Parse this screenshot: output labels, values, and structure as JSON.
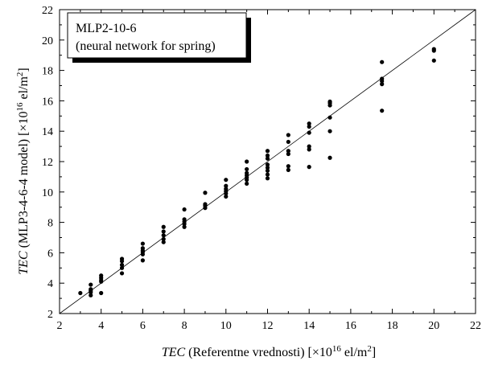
{
  "chart_data": {
    "type": "scatter",
    "title": "",
    "annotation": {
      "line1": "MLP2-10-6",
      "line2": "(neural network for spring)"
    },
    "xlabel": {
      "italic": "TEC",
      "text": " (Referentne vrednosti) [×10",
      "exp": "16",
      "unit": " el/m",
      "unit_exp": "2",
      "close": "]"
    },
    "ylabel": {
      "italic": "TEC",
      "text": " (MLP3-4-6-4 model) [×10",
      "exp": "16",
      "unit": " el/m",
      "unit_exp": "2",
      "close": "]"
    },
    "xlim": [
      2,
      22
    ],
    "ylim": [
      2,
      22
    ],
    "xticks": [
      2,
      4,
      6,
      8,
      10,
      12,
      14,
      16,
      18,
      20,
      22
    ],
    "yticks": [
      2,
      4,
      6,
      8,
      10,
      12,
      14,
      16,
      18,
      20,
      22
    ],
    "reference_line": {
      "from": [
        2,
        2
      ],
      "to": [
        22,
        22
      ]
    },
    "grid": false,
    "points": [
      [
        3,
        3.35
      ],
      [
        3.5,
        3.2
      ],
      [
        3.5,
        3.4
      ],
      [
        3.5,
        3.5
      ],
      [
        3.5,
        3.6
      ],
      [
        3.5,
        3.9
      ],
      [
        4,
        3.35
      ],
      [
        4,
        4.1
      ],
      [
        4,
        4.2
      ],
      [
        4,
        4.35
      ],
      [
        4,
        4.5
      ],
      [
        5,
        4.65
      ],
      [
        5,
        5.0
      ],
      [
        5,
        5.2
      ],
      [
        5,
        5.45
      ],
      [
        5,
        5.6
      ],
      [
        6,
        5.5
      ],
      [
        6,
        5.9
      ],
      [
        6,
        6.05
      ],
      [
        6,
        6.15
      ],
      [
        6,
        6.3
      ],
      [
        6,
        6.6
      ],
      [
        7,
        6.7
      ],
      [
        7,
        6.9
      ],
      [
        7,
        7.15
      ],
      [
        7,
        7.4
      ],
      [
        7,
        7.7
      ],
      [
        8,
        7.7
      ],
      [
        8,
        7.9
      ],
      [
        8,
        8.05
      ],
      [
        8,
        8.2
      ],
      [
        8,
        8.85
      ],
      [
        9,
        8.95
      ],
      [
        9,
        9.1
      ],
      [
        9,
        9.2
      ],
      [
        9,
        9.95
      ],
      [
        10,
        9.7
      ],
      [
        10,
        9.9
      ],
      [
        10,
        10.05
      ],
      [
        10,
        10.2
      ],
      [
        10,
        10.4
      ],
      [
        10,
        10.8
      ],
      [
        11,
        10.55
      ],
      [
        11,
        10.8
      ],
      [
        11,
        10.95
      ],
      [
        11,
        11.1
      ],
      [
        11,
        11.25
      ],
      [
        11,
        11.5
      ],
      [
        11,
        12.0
      ],
      [
        12,
        10.9
      ],
      [
        12,
        11.15
      ],
      [
        12,
        11.4
      ],
      [
        12,
        11.6
      ],
      [
        12,
        11.8
      ],
      [
        12,
        12.2
      ],
      [
        12,
        12.4
      ],
      [
        12,
        12.7
      ],
      [
        13,
        11.45
      ],
      [
        13,
        11.7
      ],
      [
        13,
        12.5
      ],
      [
        13,
        12.7
      ],
      [
        13,
        13.3
      ],
      [
        13,
        13.75
      ],
      [
        14,
        11.65
      ],
      [
        14,
        12.8
      ],
      [
        14,
        13.0
      ],
      [
        14,
        13.9
      ],
      [
        14,
        14.3
      ],
      [
        14,
        14.5
      ],
      [
        15,
        12.25
      ],
      [
        15,
        14.0
      ],
      [
        15,
        14.9
      ],
      [
        15,
        15.7
      ],
      [
        15,
        15.85
      ],
      [
        15,
        15.95
      ],
      [
        17.5,
        15.35
      ],
      [
        17.5,
        17.1
      ],
      [
        17.5,
        17.3
      ],
      [
        17.5,
        17.45
      ],
      [
        17.5,
        18.55
      ],
      [
        20,
        18.65
      ],
      [
        20,
        19.3
      ],
      [
        20,
        19.4
      ]
    ]
  }
}
